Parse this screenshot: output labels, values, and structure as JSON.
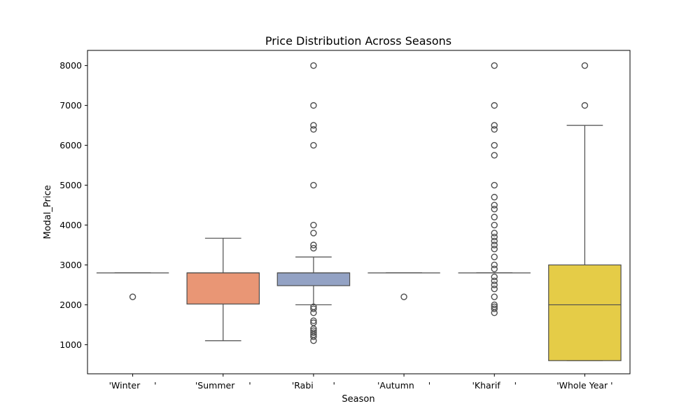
{
  "chart_data": {
    "type": "box",
    "title": "Price Distribution Across Seasons",
    "xlabel": "Season",
    "ylabel": "Modal_Price",
    "ylim": [
      270,
      8380
    ],
    "yticks": [
      1000,
      2000,
      3000,
      4000,
      5000,
      6000,
      7000,
      8000
    ],
    "ytick_labels": [
      "1000",
      "2000",
      "3000",
      "4000",
      "5000",
      "6000",
      "7000",
      "8000"
    ],
    "grid": false,
    "legend": "none",
    "categories": [
      "'Winter     '",
      "'Summer     '",
      "'Rabi       '",
      "'Autumn     '",
      "'Kharif     '",
      "'Whole Year '"
    ],
    "boxes": [
      {
        "category": "'Winter     '",
        "color": "#66c2a5",
        "whisker_low": 2800,
        "q1": 2800,
        "median": 2800,
        "q3": 2800,
        "whisker_high": 2800,
        "outliers": [
          2200
        ]
      },
      {
        "category": "'Summer     '",
        "color": "#e99675",
        "whisker_low": 1100,
        "q1": 2020,
        "median": 2800,
        "q3": 2800,
        "whisker_high": 3670,
        "outliers": []
      },
      {
        "category": "'Rabi       '",
        "color": "#93a2c4",
        "whisker_low": 2000,
        "q1": 2480,
        "median": 2800,
        "q3": 2800,
        "whisker_high": 3200,
        "outliers": [
          8000,
          7000,
          6500,
          6400,
          6000,
          5000,
          4000,
          3800,
          3500,
          3420,
          1950,
          1900,
          1800,
          1600,
          1550,
          1400,
          1350,
          1300,
          1250,
          1200,
          1100
        ]
      },
      {
        "category": "'Autumn     '",
        "color": "#e78ac3",
        "whisker_low": 2800,
        "q1": 2800,
        "median": 2800,
        "q3": 2800,
        "whisker_high": 2800,
        "outliers": [
          2200
        ]
      },
      {
        "category": "'Kharif     '",
        "color": "#a6d854",
        "whisker_low": 2800,
        "q1": 2800,
        "median": 2800,
        "q3": 2800,
        "whisker_high": 2800,
        "outliers": [
          8000,
          7000,
          6500,
          6400,
          6000,
          5750,
          5000,
          4700,
          4500,
          4400,
          4200,
          4000,
          3800,
          3700,
          3600,
          3500,
          3400,
          3200,
          3000,
          2900,
          2700,
          2600,
          2500,
          2400,
          2200,
          2000,
          1950,
          1900,
          1800
        ]
      },
      {
        "category": "'Whole Year '",
        "color": "#e5cc47",
        "whisker_low": 600,
        "q1": 600,
        "median": 2000,
        "q3": 3000,
        "whisker_high": 6500,
        "outliers": [
          8000,
          7000
        ]
      }
    ]
  }
}
